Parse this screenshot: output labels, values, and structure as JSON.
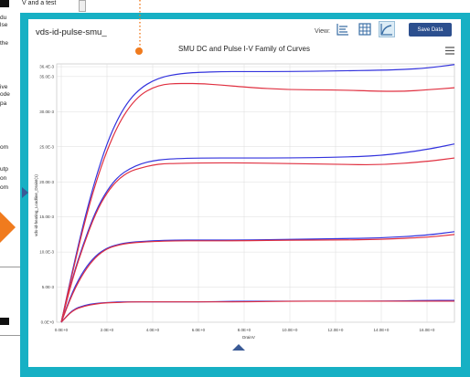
{
  "background_doc": {
    "top_text": "V and a test",
    "fragments": [
      "du",
      "lse",
      "the",
      "ive",
      "ode",
      "pa",
      "om",
      "utp",
      "on",
      "om"
    ]
  },
  "panel": {
    "title": "vds-id-pulse-smu_",
    "view_label": "View:",
    "view_buttons": [
      {
        "icon": "chart-settings-icon",
        "active": false
      },
      {
        "icon": "table-icon",
        "active": false
      },
      {
        "icon": "line-chart-icon",
        "active": true
      }
    ],
    "save_label": "Save Data",
    "menu_icon": "hamburger-menu-icon"
  },
  "colors": {
    "frame": "#17b0c4",
    "accent": "#f07b1e",
    "button": "#2c4f8e",
    "series_dc": "#3333dd",
    "series_pulse": "#e03040"
  },
  "chart_data": {
    "type": "line",
    "title": "SMU DC and Pulse I-V Family of Curves",
    "xlabel": "DrainV",
    "ylabel": "vds-id-heating_Loadline_DrainI(1)",
    "xlim": [
      -0.2,
      17.2
    ],
    "ylim": [
      0,
      0.0368
    ],
    "x_ticks": [
      "0.0E+0",
      "2.0E+0",
      "4.0E+0",
      "6.0E+0",
      "8.0E+0",
      "10.0E+0",
      "12.0E+0",
      "14.0E+0",
      "16.0E+0"
    ],
    "x_tick_values": [
      0,
      2,
      4,
      6,
      8,
      10,
      12,
      14,
      16
    ],
    "y_ticks": [
      "0.0E+0",
      "5.0E-3",
      "10.0E-3",
      "15.0E-3",
      "20.0E-3",
      "25.0E-3",
      "30.0E-3",
      "35.0E-3",
      "36.4E-3"
    ],
    "y_tick_values": [
      0,
      0.005,
      0.01,
      0.015,
      0.02,
      0.025,
      0.03,
      0.035,
      0.0364
    ],
    "grid": true,
    "series": [
      {
        "color": "blue",
        "x": [
          0,
          0.5,
          1,
          1.5,
          2,
          2.5,
          3,
          4,
          5,
          6,
          8,
          10,
          12,
          14,
          16,
          17.2
        ],
        "y": [
          0,
          0.0018,
          0.0024,
          0.0027,
          0.0028,
          0.0029,
          0.0029,
          0.0029,
          0.0029,
          0.0029,
          0.003,
          0.003,
          0.003,
          0.003,
          0.0031,
          0.0031
        ]
      },
      {
        "color": "red",
        "x": [
          0,
          0.5,
          1,
          1.5,
          2,
          2.5,
          3,
          4,
          5,
          6,
          8,
          10,
          12,
          14,
          16,
          17.2
        ],
        "y": [
          0,
          0.0017,
          0.0023,
          0.0026,
          0.0028,
          0.0028,
          0.0029,
          0.0029,
          0.0029,
          0.0029,
          0.0029,
          0.003,
          0.003,
          0.003,
          0.003,
          0.003
        ]
      },
      {
        "color": "blue",
        "x": [
          0,
          0.5,
          1,
          1.5,
          2,
          2.5,
          3,
          3.5,
          4,
          5,
          6,
          8,
          10,
          12,
          14,
          16,
          17.2
        ],
        "y": [
          0,
          0.0045,
          0.0075,
          0.0095,
          0.0106,
          0.0111,
          0.0114,
          0.0115,
          0.0116,
          0.0117,
          0.0117,
          0.0117,
          0.0118,
          0.0119,
          0.012,
          0.0124,
          0.0129
        ]
      },
      {
        "color": "red",
        "x": [
          0,
          0.5,
          1,
          1.5,
          2,
          2.5,
          3,
          3.5,
          4,
          5,
          6,
          8,
          10,
          12,
          14,
          16,
          17.2
        ],
        "y": [
          0,
          0.0042,
          0.0072,
          0.0093,
          0.0105,
          0.011,
          0.0113,
          0.0114,
          0.0115,
          0.0116,
          0.0116,
          0.0116,
          0.0117,
          0.0117,
          0.0118,
          0.0121,
          0.0125
        ]
      },
      {
        "color": "blue",
        "x": [
          0,
          0.5,
          1,
          1.5,
          2,
          2.5,
          3,
          3.5,
          4,
          4.5,
          5,
          6,
          8,
          10,
          12,
          14,
          16,
          17.2
        ],
        "y": [
          0,
          0.0065,
          0.0115,
          0.0158,
          0.0188,
          0.0208,
          0.0219,
          0.0226,
          0.023,
          0.0232,
          0.0233,
          0.0234,
          0.0234,
          0.0234,
          0.0235,
          0.0237,
          0.0246,
          0.0254
        ]
      },
      {
        "color": "red",
        "x": [
          0,
          0.5,
          1,
          1.5,
          2,
          2.5,
          3,
          3.5,
          4,
          4.5,
          5,
          6,
          8,
          10,
          12,
          14,
          16,
          17.2
        ],
        "y": [
          0,
          0.0063,
          0.0112,
          0.0155,
          0.0185,
          0.0204,
          0.0215,
          0.022,
          0.0224,
          0.0226,
          0.0226,
          0.0227,
          0.0227,
          0.0226,
          0.0225,
          0.0224,
          0.0229,
          0.0234
        ]
      },
      {
        "color": "blue",
        "x": [
          0,
          0.5,
          1,
          1.5,
          2,
          2.5,
          3,
          3.5,
          4,
          4.5,
          5,
          5.5,
          6,
          7,
          8,
          10,
          12,
          14,
          15,
          16,
          17.2
        ],
        "y": [
          0,
          0.0075,
          0.0145,
          0.0205,
          0.0255,
          0.0292,
          0.0318,
          0.0334,
          0.0344,
          0.035,
          0.0353,
          0.0355,
          0.0356,
          0.0357,
          0.0357,
          0.0357,
          0.0358,
          0.0359,
          0.036,
          0.0362,
          0.0367
        ]
      },
      {
        "color": "red",
        "x": [
          0,
          0.5,
          1,
          1.5,
          2,
          2.5,
          3,
          3.5,
          4,
          4.5,
          5,
          5.5,
          6,
          7,
          8,
          10,
          12,
          14,
          15,
          16,
          17.2
        ],
        "y": [
          0,
          0.0072,
          0.014,
          0.0198,
          0.0245,
          0.0282,
          0.0308,
          0.0325,
          0.0334,
          0.0339,
          0.034,
          0.034,
          0.034,
          0.0338,
          0.0335,
          0.0331,
          0.0331,
          0.0329,
          0.0329,
          0.0331,
          0.0334
        ]
      }
    ]
  }
}
